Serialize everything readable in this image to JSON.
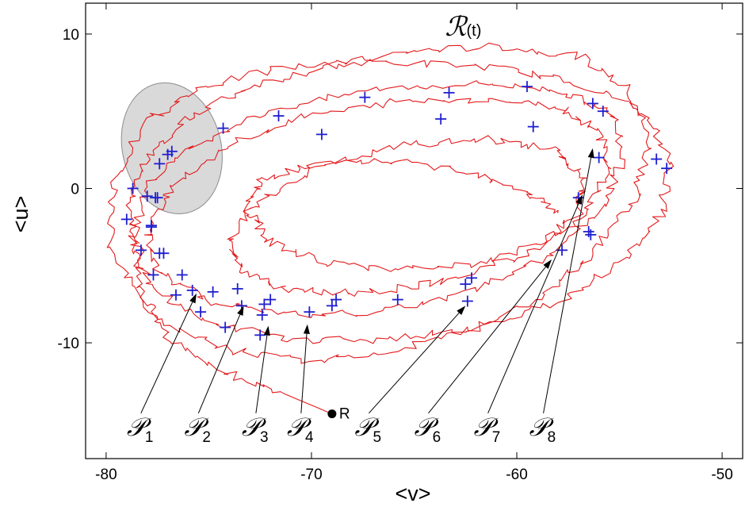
{
  "chart_data": {
    "type": "line",
    "title": "",
    "xlabel": "<v>",
    "ylabel": "<u>",
    "xlim": [
      -81,
      -49
    ],
    "ylim": [
      -17.5,
      12
    ],
    "x_ticks": [
      -80,
      -70,
      -60,
      -50
    ],
    "y_ticks": [
      10,
      0,
      -10
    ],
    "grid": false,
    "series": [
      {
        "type": "line",
        "color": "#e31a1c",
        "description_points": "noisy spiral trajectory starting at point R",
        "x": [
          -69.0,
          -71.5,
          -74.5,
          -77.0,
          -78.2,
          -78.5,
          -78.8,
          -78.0,
          -76.0,
          -73.0,
          -69.0,
          -65.0,
          -61.0,
          -57.0,
          -54.5,
          -53.5,
          -54.2,
          -56.0,
          -58.5,
          -62.0,
          -66.0,
          -70.0,
          -74.0,
          -77.5,
          -79.8,
          -79.6,
          -78.2,
          -75.5,
          -71.5,
          -66.5,
          -61.5,
          -57.5,
          -54.0,
          -52.5,
          -53.0,
          -55.0,
          -58.0,
          -62.0,
          -66.5,
          -71.0,
          -75.0,
          -77.8,
          -78.7,
          -78.0,
          -75.6,
          -71.6,
          -66.5,
          -61.5,
          -57.8,
          -55.3,
          -54.8,
          -56.0,
          -58.6,
          -62.5,
          -67.0,
          -71.5,
          -75.0,
          -77.4,
          -78.0,
          -76.8,
          -74.0,
          -70.5,
          -66.0,
          -61.5,
          -58.0,
          -56.0,
          -55.5,
          -56.8,
          -59.5,
          -63.5,
          -67.5,
          -71.0,
          -73.4,
          -74.0,
          -72.5,
          -69.5,
          -65.5,
          -61.5,
          -58.3,
          -56.8,
          -57.0,
          -58.8,
          -62.0,
          -66.0,
          -69.5,
          -72.0,
          -73.2,
          -72.4,
          -70.0,
          -66.5,
          -62.5,
          -59.5,
          -58.0
        ],
        "y": [
          -14.6,
          -13.2,
          -11.8,
          -9.6,
          -7.0,
          -4.0,
          -1.0,
          2.0,
          4.6,
          6.6,
          8.0,
          8.9,
          9.2,
          8.6,
          6.5,
          3.0,
          -0.5,
          -3.8,
          -6.8,
          -9.0,
          -10.5,
          -11.2,
          -10.5,
          -8.5,
          -4.0,
          0.5,
          4.2,
          6.5,
          7.8,
          8.2,
          7.9,
          7.0,
          5.2,
          1.8,
          -1.8,
          -4.8,
          -7.4,
          -9.0,
          -9.8,
          -9.8,
          -8.7,
          -6.3,
          -3.2,
          0.2,
          3.0,
          5.2,
          6.5,
          6.8,
          6.3,
          4.8,
          2.0,
          -1.5,
          -4.5,
          -6.8,
          -8.0,
          -8.2,
          -7.3,
          -5.5,
          -2.8,
          0.2,
          2.8,
          4.6,
          5.6,
          5.8,
          5.3,
          3.8,
          1.2,
          -1.8,
          -4.3,
          -6.0,
          -6.8,
          -6.6,
          -5.4,
          -3.2,
          -0.8,
          1.4,
          2.8,
          3.2,
          2.6,
          0.8,
          -1.5,
          -3.6,
          -4.9,
          -5.3,
          -4.8,
          -3.4,
          -1.4,
          0.6,
          1.5,
          1.8,
          1.2,
          -0.2,
          -1.6
        ],
        "noise_amplitude": 0.5
      },
      {
        "type": "scatter",
        "marker": "+",
        "color": "#1f1fd0",
        "x": [
          -79.0,
          -78.7,
          -78.3,
          -77.8,
          -77.5,
          -77.4,
          -77.0,
          -77.6,
          -77.8,
          -77.2,
          -77.7,
          -77.4,
          -76.8,
          -76.6,
          -76.3,
          -75.8,
          -75.4,
          -74.8,
          -74.3,
          -73.6,
          -73.4,
          -72.5,
          -72.3,
          -72.0,
          -71.6,
          -70.1,
          -69.5,
          -69.0,
          -68.8,
          -67.4,
          -65.8,
          -63.7,
          -63.3,
          -62.5,
          -62.4,
          -62.2,
          -59.5,
          -59.2,
          -57.8,
          -57.0,
          -56.5,
          -56.4,
          -56.3,
          -56.0,
          -55.8,
          -53.2,
          -52.7,
          -72.4,
          -78.0,
          -74.2
        ],
        "y": [
          -2.0,
          0.0,
          -4.0,
          -2.4,
          -0.6,
          1.6,
          2.2,
          -0.6,
          -2.5,
          -4.2,
          -5.6,
          -4.2,
          2.4,
          -6.9,
          -5.6,
          -6.6,
          -8.0,
          -6.7,
          3.9,
          -6.5,
          -7.6,
          -9.5,
          -7.5,
          -7.2,
          4.7,
          -8.0,
          3.5,
          -7.6,
          -7.2,
          5.9,
          -7.2,
          4.5,
          6.2,
          -6.2,
          -7.3,
          -5.8,
          6.6,
          4.0,
          -4.0,
          -0.6,
          -2.8,
          -3.0,
          5.5,
          2.0,
          5.0,
          1.9,
          1.3,
          -8.2,
          -0.5,
          -9.0
        ]
      },
      {
        "type": "ellipse",
        "color": "#d9d9d9",
        "center": [
          -76.8,
          2.6
        ],
        "radii": [
          2.4,
          4.3
        ],
        "rotation_deg": -14
      }
    ],
    "annotations": {
      "region": {
        "label": "R",
        "x": -69.0,
        "y": -14.6
      },
      "title_symbol": {
        "main": "ℛ",
        "sub": "(t)",
        "x": -63.5,
        "y": 9.9
      },
      "arrows": [
        {
          "main": "𝒫",
          "sub": "1",
          "label_x": -79.0,
          "label_y": -16.0,
          "target_x": -75.6,
          "target_y": -6.8
        },
        {
          "main": "𝒫",
          "sub": "2",
          "label_x": -76.2,
          "label_y": -16.0,
          "target_x": -73.3,
          "target_y": -7.6
        },
        {
          "main": "𝒫",
          "sub": "3",
          "label_x": -73.4,
          "label_y": -16.0,
          "target_x": -72.1,
          "target_y": -8.9
        },
        {
          "main": "𝒫",
          "sub": "4",
          "label_x": -71.2,
          "label_y": -16.0,
          "target_x": -70.2,
          "target_y": -8.8
        },
        {
          "main": "𝒫",
          "sub": "5",
          "label_x": -67.9,
          "label_y": -16.0,
          "target_x": -62.5,
          "target_y": -7.6
        },
        {
          "main": "𝒫",
          "sub": "6",
          "label_x": -65.0,
          "label_y": -16.0,
          "target_x": -58.3,
          "target_y": -4.6
        },
        {
          "main": "𝒫",
          "sub": "7",
          "label_x": -62.1,
          "label_y": -16.0,
          "target_x": -56.8,
          "target_y": -0.4
        },
        {
          "main": "𝒫",
          "sub": "8",
          "label_x": -59.4,
          "label_y": -16.0,
          "target_x": -56.3,
          "target_y": 2.6
        }
      ]
    }
  }
}
